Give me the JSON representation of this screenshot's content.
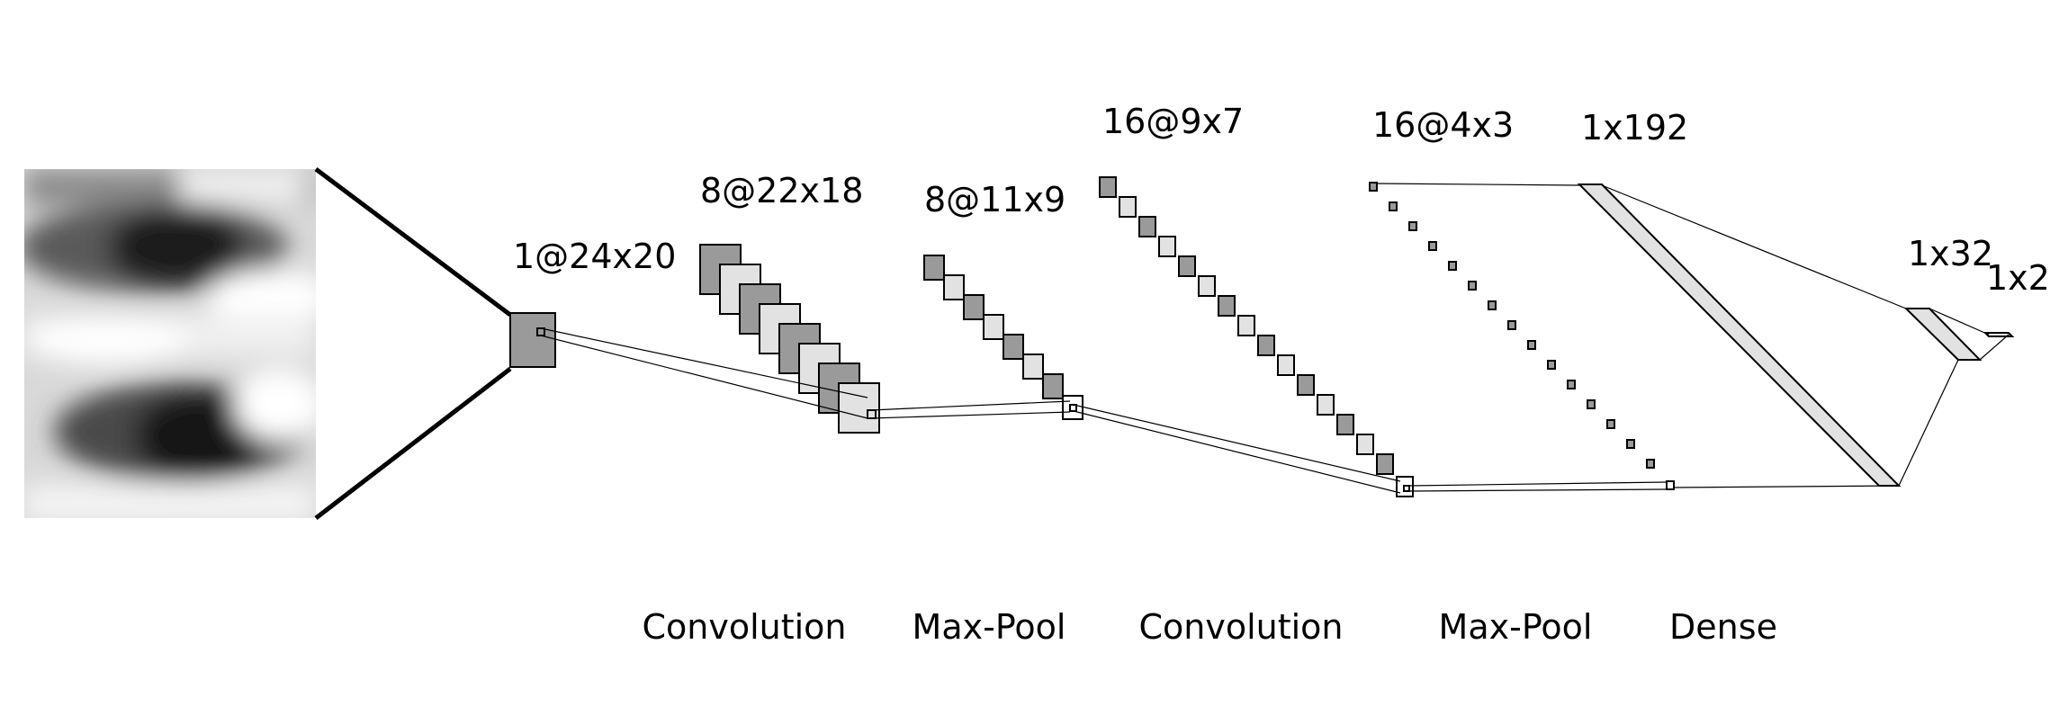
{
  "layers": [
    {
      "shape": "1@24x20"
    },
    {
      "shape": "8@22x18"
    },
    {
      "shape": "8@11x9"
    },
    {
      "shape": "16@9x7"
    },
    {
      "shape": "16@4x3"
    },
    {
      "shape": "1x192"
    },
    {
      "shape": "1x32"
    },
    {
      "shape": "1x2"
    }
  ],
  "operations": [
    {
      "label": "Convolution"
    },
    {
      "label": "Max-Pool"
    },
    {
      "label": "Convolution"
    },
    {
      "label": "Max-Pool"
    },
    {
      "label": "Dense"
    }
  ],
  "input_image": {
    "icon": "eye-crop-grayscale-image"
  },
  "colors": {
    "fm_dark": "#9a9a9a",
    "fm_light": "#e2e2e2",
    "line": "#000000"
  }
}
